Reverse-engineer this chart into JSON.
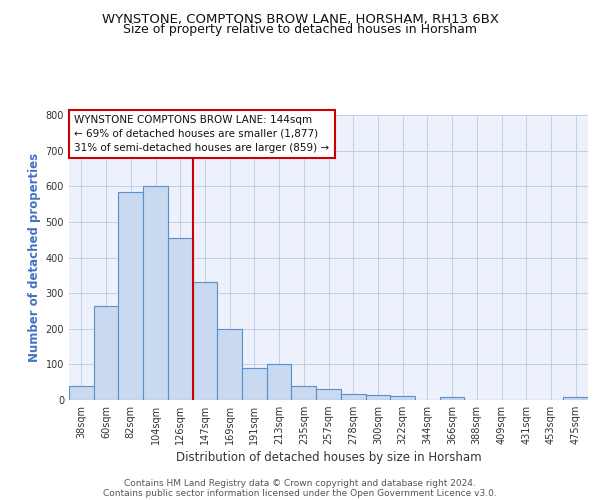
{
  "title": "WYNSTONE, COMPTONS BROW LANE, HORSHAM, RH13 6BX",
  "subtitle": "Size of property relative to detached houses in Horsham",
  "xlabel": "Distribution of detached houses by size in Horsham",
  "ylabel": "Number of detached properties",
  "categories": [
    "38sqm",
    "60sqm",
    "82sqm",
    "104sqm",
    "126sqm",
    "147sqm",
    "169sqm",
    "191sqm",
    "213sqm",
    "235sqm",
    "257sqm",
    "278sqm",
    "300sqm",
    "322sqm",
    "344sqm",
    "366sqm",
    "388sqm",
    "409sqm",
    "431sqm",
    "453sqm",
    "475sqm"
  ],
  "values": [
    38,
    265,
    583,
    600,
    455,
    330,
    198,
    90,
    100,
    38,
    32,
    16,
    14,
    10,
    0,
    8,
    0,
    0,
    0,
    0,
    8
  ],
  "bar_color": "#c9d9f0",
  "bar_edge_color": "#5b8fc9",
  "vline_x": 4.5,
  "vline_color": "#cc0000",
  "annotation_box_text": "WYNSTONE COMPTONS BROW LANE: 144sqm\n← 69% of detached houses are smaller (1,877)\n31% of semi-detached houses are larger (859) →",
  "annotation_box_edge_color": "#cc0000",
  "ylim": [
    0,
    800
  ],
  "yticks": [
    0,
    100,
    200,
    300,
    400,
    500,
    600,
    700,
    800
  ],
  "grid_color": "#c0cfe8",
  "footer_line1": "Contains HM Land Registry data © Crown copyright and database right 2024.",
  "footer_line2": "Contains public sector information licensed under the Open Government Licence v3.0.",
  "bg_color": "#edf1fb",
  "title_fontsize": 9.5,
  "subtitle_fontsize": 9,
  "axis_label_fontsize": 8.5,
  "tick_fontsize": 7,
  "footer_fontsize": 6.5,
  "annotation_fontsize": 7.5
}
